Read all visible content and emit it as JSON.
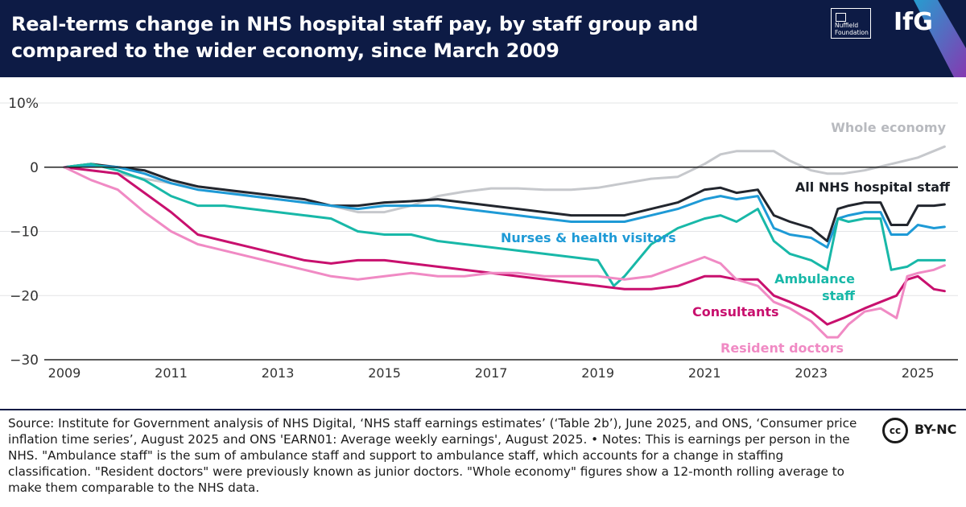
{
  "header": {
    "title": "Real-terms change in NHS hospital staff pay, by staff group and compared to the wider economy, since March 2009",
    "partner_logo_text": "Nuffield Foundation",
    "org_logo_text": "IfG"
  },
  "chart_data": {
    "type": "line",
    "title": "Real-terms change in NHS hospital staff pay, by staff group and compared to the wider economy, since March 2009",
    "xlabel": "",
    "ylabel": "",
    "xlim": [
      2009.0,
      2025.6
    ],
    "ylim": [
      -30,
      10
    ],
    "x_ticks": [
      "2009",
      "2011",
      "2013",
      "2015",
      "2017",
      "2019",
      "2021",
      "2023",
      "2025"
    ],
    "y_ticks": [
      "10%",
      "0",
      "−10",
      "−20",
      "−30"
    ],
    "grid": true,
    "series": [
      {
        "name": "Whole economy",
        "color": "#c6c8cc",
        "x": [
          2009.0,
          2009.5,
          2010.0,
          2010.5,
          2011.0,
          2011.5,
          2012.0,
          2012.5,
          2013.0,
          2013.5,
          2014.0,
          2014.5,
          2015.0,
          2015.5,
          2016.0,
          2016.5,
          2017.0,
          2017.5,
          2018.0,
          2018.5,
          2019.0,
          2019.5,
          2020.0,
          2020.5,
          2021.0,
          2021.3,
          2021.6,
          2022.0,
          2022.3,
          2022.6,
          2023.0,
          2023.3,
          2023.6,
          2024.0,
          2024.5,
          2025.0,
          2025.5
        ],
        "values": [
          0,
          -0.5,
          -1.0,
          -1.8,
          -2.5,
          -3.0,
          -3.5,
          -4.5,
          -5.0,
          -5.5,
          -6.0,
          -7.0,
          -7.0,
          -6.0,
          -4.5,
          -3.8,
          -3.3,
          -3.3,
          -3.5,
          -3.5,
          -3.2,
          -2.5,
          -1.8,
          -1.5,
          0.5,
          2.0,
          2.5,
          2.5,
          2.5,
          1.0,
          -0.5,
          -1.0,
          -1.0,
          -0.5,
          0.5,
          1.5,
          3.2
        ]
      },
      {
        "name": "All NHS hospital staff",
        "color": "#22262e",
        "x": [
          2009.0,
          2009.5,
          2010.0,
          2010.5,
          2011.0,
          2011.5,
          2012.0,
          2012.5,
          2013.0,
          2013.5,
          2014.0,
          2014.5,
          2015.0,
          2015.5,
          2016.0,
          2016.5,
          2017.0,
          2017.5,
          2018.0,
          2018.5,
          2019.0,
          2019.5,
          2020.0,
          2020.5,
          2021.0,
          2021.3,
          2021.6,
          2022.0,
          2022.3,
          2022.6,
          2023.0,
          2023.3,
          2023.5,
          2023.7,
          2024.0,
          2024.3,
          2024.5,
          2024.8,
          2025.0,
          2025.3,
          2025.5
        ],
        "values": [
          0,
          0.5,
          0,
          -0.5,
          -2.0,
          -3.0,
          -3.5,
          -4.0,
          -4.5,
          -5.0,
          -6.0,
          -6.0,
          -5.5,
          -5.3,
          -5.0,
          -5.5,
          -6.0,
          -6.5,
          -7.0,
          -7.5,
          -7.5,
          -7.5,
          -6.5,
          -5.5,
          -3.5,
          -3.2,
          -4.0,
          -3.5,
          -7.5,
          -8.5,
          -9.5,
          -11.5,
          -6.5,
          -6.0,
          -5.5,
          -5.5,
          -9.0,
          -9.0,
          -6.0,
          -6.0,
          -5.8
        ]
      },
      {
        "name": "Nurses & health visitors",
        "color": "#1e9ad6",
        "x": [
          2009.0,
          2009.5,
          2010.0,
          2010.5,
          2011.0,
          2011.5,
          2012.0,
          2012.5,
          2013.0,
          2013.5,
          2014.0,
          2014.5,
          2015.0,
          2015.5,
          2016.0,
          2016.5,
          2017.0,
          2017.5,
          2018.0,
          2018.5,
          2019.0,
          2019.5,
          2020.0,
          2020.5,
          2021.0,
          2021.3,
          2021.6,
          2022.0,
          2022.3,
          2022.6,
          2023.0,
          2023.3,
          2023.5,
          2023.7,
          2024.0,
          2024.3,
          2024.5,
          2024.8,
          2025.0,
          2025.3,
          2025.5
        ],
        "values": [
          0,
          0.3,
          0,
          -1.0,
          -2.5,
          -3.5,
          -4.0,
          -4.5,
          -5.0,
          -5.5,
          -6.0,
          -6.5,
          -6.0,
          -6.0,
          -6.0,
          -6.5,
          -7.0,
          -7.5,
          -8.0,
          -8.5,
          -8.5,
          -8.5,
          -7.5,
          -6.5,
          -5.0,
          -4.5,
          -5.0,
          -4.5,
          -9.5,
          -10.5,
          -11.0,
          -12.5,
          -8.0,
          -7.5,
          -7.0,
          -7.0,
          -10.5,
          -10.5,
          -9.0,
          -9.5,
          -9.3
        ]
      },
      {
        "name": "Ambulance staff",
        "color": "#18b8a8",
        "x": [
          2009.0,
          2009.5,
          2010.0,
          2010.5,
          2011.0,
          2011.5,
          2012.0,
          2012.5,
          2013.0,
          2013.5,
          2014.0,
          2014.5,
          2015.0,
          2015.5,
          2016.0,
          2016.5,
          2017.0,
          2017.5,
          2018.0,
          2018.5,
          2019.0,
          2019.3,
          2019.5,
          2020.0,
          2020.5,
          2021.0,
          2021.3,
          2021.6,
          2022.0,
          2022.3,
          2022.6,
          2023.0,
          2023.3,
          2023.5,
          2023.7,
          2024.0,
          2024.3,
          2024.5,
          2024.8,
          2025.0,
          2025.3,
          2025.5
        ],
        "values": [
          0,
          0.5,
          -0.5,
          -2.0,
          -4.5,
          -6.0,
          -6.0,
          -6.5,
          -7.0,
          -7.5,
          -8.0,
          -10.0,
          -10.5,
          -10.5,
          -11.5,
          -12.0,
          -12.5,
          -13.0,
          -13.5,
          -14.0,
          -14.5,
          -18.5,
          -17.0,
          -12.0,
          -9.5,
          -8.0,
          -7.5,
          -8.5,
          -6.5,
          -11.5,
          -13.5,
          -14.5,
          -16.0,
          -8.0,
          -8.5,
          -8.0,
          -8.0,
          -16.0,
          -15.5,
          -14.5,
          -14.5,
          -14.5
        ]
      },
      {
        "name": "Consultants",
        "color": "#c8106e",
        "x": [
          2009.0,
          2009.5,
          2010.0,
          2010.5,
          2011.0,
          2011.5,
          2012.0,
          2012.5,
          2013.0,
          2013.5,
          2014.0,
          2014.5,
          2015.0,
          2015.5,
          2016.0,
          2016.5,
          2017.0,
          2017.5,
          2018.0,
          2018.5,
          2019.0,
          2019.5,
          2020.0,
          2020.5,
          2021.0,
          2021.3,
          2021.6,
          2022.0,
          2022.3,
          2022.6,
          2023.0,
          2023.3,
          2023.6,
          2024.0,
          2024.3,
          2024.6,
          2024.8,
          2025.0,
          2025.3,
          2025.5
        ],
        "values": [
          0,
          -0.5,
          -1.0,
          -4.0,
          -7.0,
          -10.5,
          -11.5,
          -12.5,
          -13.5,
          -14.5,
          -15.0,
          -14.5,
          -14.5,
          -15.0,
          -15.5,
          -16.0,
          -16.5,
          -17.0,
          -17.5,
          -18.0,
          -18.5,
          -19.0,
          -19.0,
          -18.5,
          -17.0,
          -17.0,
          -17.5,
          -17.5,
          -20.0,
          -21.0,
          -22.5,
          -24.5,
          -23.5,
          -22.0,
          -21.0,
          -20.0,
          -17.5,
          -17.0,
          -19.0,
          -19.3
        ]
      },
      {
        "name": "Resident doctors",
        "color": "#f08ac4",
        "x": [
          2009.0,
          2009.5,
          2010.0,
          2010.5,
          2011.0,
          2011.5,
          2012.0,
          2012.5,
          2013.0,
          2013.5,
          2014.0,
          2014.5,
          2015.0,
          2015.5,
          2016.0,
          2016.5,
          2017.0,
          2017.5,
          2018.0,
          2018.5,
          2019.0,
          2019.5,
          2020.0,
          2020.5,
          2021.0,
          2021.3,
          2021.6,
          2022.0,
          2022.3,
          2022.6,
          2023.0,
          2023.3,
          2023.5,
          2023.7,
          2024.0,
          2024.3,
          2024.6,
          2024.8,
          2025.0,
          2025.3,
          2025.5
        ],
        "values": [
          0,
          -2.0,
          -3.5,
          -7.0,
          -10.0,
          -12.0,
          -13.0,
          -14.0,
          -15.0,
          -16.0,
          -17.0,
          -17.5,
          -17.0,
          -16.5,
          -17.0,
          -17.0,
          -16.5,
          -16.5,
          -17.0,
          -17.0,
          -17.0,
          -17.5,
          -17.0,
          -15.5,
          -14.0,
          -15.0,
          -17.5,
          -18.5,
          -21.0,
          -22.0,
          -24.0,
          -26.5,
          -26.5,
          -24.5,
          -22.5,
          -22.0,
          -23.5,
          -17.0,
          -16.5,
          -16.0,
          -15.3
        ]
      }
    ],
    "annotations": [
      {
        "text": "Whole economy",
        "series": "Whole economy"
      },
      {
        "text": "All NHS hospital staff",
        "series": "All NHS hospital staff"
      },
      {
        "text": "Nurses & health visitors",
        "series": "Nurses & health visitors"
      },
      {
        "text": "Ambulance",
        "series": "Ambulance staff"
      },
      {
        "text": "staff",
        "series": "Ambulance staff"
      },
      {
        "text": "Consultants",
        "series": "Consultants"
      },
      {
        "text": "Resident doctors",
        "series": "Resident doctors"
      }
    ]
  },
  "footer": {
    "source_text": "Source: Institute for Government analysis of NHS Digital, ‘NHS staff earnings estimates’ (‘Table 2b’), June 2025, and ONS, ‘Consumer price inflation time series’, August 2025 and ONS 'EARN01: Average weekly earnings', August 2025. • Notes: This is earnings per person in the NHS. \"Ambulance staff\" is the sum of ambulance staff and support to ambulance staff, which accounts for a change in staffing classification. \"Resident doctors\" were previously known as junior doctors. \"Whole economy\" figures show a 12-month rolling average to make them comparable to the NHS data.",
    "license_badge": "cc",
    "license_text": "BY-NC"
  }
}
